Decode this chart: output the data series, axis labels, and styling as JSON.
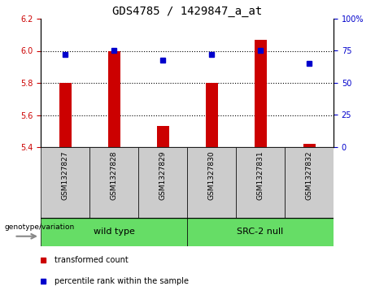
{
  "title": "GDS4785 / 1429847_a_at",
  "samples": [
    "GSM1327827",
    "GSM1327828",
    "GSM1327829",
    "GSM1327830",
    "GSM1327831",
    "GSM1327832"
  ],
  "red_values": [
    5.8,
    6.0,
    5.53,
    5.8,
    6.07,
    5.42
  ],
  "blue_values": [
    72,
    75,
    68,
    72,
    75,
    65
  ],
  "ylim_left": [
    5.4,
    6.2
  ],
  "ylim_right": [
    0,
    100
  ],
  "yticks_left": [
    5.4,
    5.6,
    5.8,
    6.0,
    6.2
  ],
  "yticks_right": [
    0,
    25,
    50,
    75,
    100
  ],
  "ytick_labels_right": [
    "0",
    "25",
    "50",
    "75",
    "100%"
  ],
  "bar_bottom": 5.4,
  "bar_color": "#cc0000",
  "dot_color": "#0000cc",
  "group1_label": "wild type",
  "group2_label": "SRC-2 null",
  "group1_color": "#66dd66",
  "group2_color": "#66dd66",
  "genotype_label": "genotype/variation",
  "legend_red": "transformed count",
  "legend_blue": "percentile rank within the sample",
  "background_color": "#ffffff",
  "title_fontsize": 10,
  "tick_label_color_left": "#cc0000",
  "tick_label_color_right": "#0000cc",
  "bar_width": 0.25,
  "sample_box_color": "#cccccc",
  "n_samples": 6,
  "n_group1": 3,
  "n_group2": 3
}
